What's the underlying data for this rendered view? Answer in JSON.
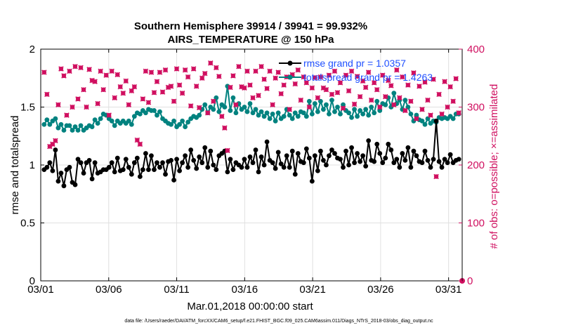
{
  "chart_data": {
    "type": "line",
    "title": "Southern Hemisphere 39914 / 39941 = 99.932%",
    "subtitle": "AIRS_TEMPERATURE @ 150 hPa",
    "xlabel": "Mar.01,2018 00:00:00 start",
    "ylabel": "rmse and totalspread",
    "ylabel_right": "# of obs: o=possible; ×=assimilated",
    "xlim": [
      0,
      31
    ],
    "ylim": [
      0,
      2
    ],
    "ylim_right": [
      0,
      400
    ],
    "x_tick_labels": [
      "03/01",
      "03/06",
      "03/11",
      "03/16",
      "03/21",
      "03/26",
      "03/31"
    ],
    "x_tick_values": [
      0,
      5,
      10,
      15,
      20,
      25,
      30
    ],
    "y_tick_labels": [
      "0",
      "0.5",
      "1",
      "1.5",
      "2"
    ],
    "y_tick_values": [
      0,
      0.5,
      1,
      1.5,
      2
    ],
    "y_right_tick_labels": [
      "0",
      "100",
      "200",
      "300",
      "400"
    ],
    "y_right_tick_values": [
      0,
      100,
      200,
      300,
      400
    ],
    "legend": [
      "rmse grand pr = 1.0357",
      "totalspread grand pr = 1.4263"
    ],
    "legend_position": "top-right",
    "colors": {
      "rmse": "#000000",
      "spread": "#00827f",
      "obs": "#d01060",
      "legend_text": "#1f4fff",
      "grid": "#e0e0e0"
    },
    "series": [
      {
        "name": "rmse",
        "values": [
          0.96,
          0.98,
          1.02,
          0.95,
          1.13,
          0.86,
          0.93,
          0.82,
          0.96,
          0.98,
          0.85,
          0.83,
          1.05,
          1.02,
          0.93,
          1.02,
          1.04,
          0.88,
          1.02,
          0.93,
          0.94,
          0.96,
          0.96,
          0.98,
          1.02,
          0.94,
          1.06,
          0.95,
          0.96,
          1.05,
          0.98,
          0.92,
          1.02,
          1.06,
          0.9,
          0.96,
          1.1,
          0.96,
          1.08,
          0.96,
          1.02,
          0.98,
          1.02,
          0.92,
          1.03,
          1.04,
          0.87,
          1.05,
          0.95,
          1.02,
          1.08,
          0.98,
          1.13,
          1.04,
          0.97,
          1.07,
          1.02,
          1.15,
          0.98,
          1.12,
          1.0,
          0.96,
          1.08,
          1.1,
          1.12,
          0.94,
          1.05,
          0.96,
          1.02,
          1.0,
          0.98,
          1.05,
          0.98,
          1.07,
          1.02,
          1.13,
          0.94,
          1.07,
          1.0,
          1.2,
          1.04,
          1.02,
          0.97,
          1.11,
          1.01,
          0.98,
          1.08,
          0.98,
          1.12,
          0.92,
          1.1,
          1.03,
          1.02,
          1.14,
          1.06,
          0.86,
          1.08,
          0.95,
          1.12,
          1.04,
          1.0,
          1.08,
          1.13,
          1.1,
          1.06,
          1.05,
          0.98,
          1.12,
          1.0,
          1.15,
          1.02,
          1.1,
          1.03,
          1.08,
          0.99,
          1.21,
          1.04,
          1.03,
          1.18,
          1.1,
          1.02,
          1.06,
          1.18,
          1.13,
          1.02,
          1.05,
          0.98,
          1.1,
          1.04,
          1.15,
          0.98,
          1.12,
          1.08,
          1.03,
          1.02,
          1.12,
          1.04,
          0.98,
          1.05,
          1.38,
          1.03,
          0.98,
          1.05,
          1.02,
          1.09,
          1.02,
          1.04,
          1.05
        ]
      },
      {
        "name": "totalspread",
        "values": [
          1.35,
          1.39,
          1.35,
          1.38,
          1.4,
          1.32,
          1.35,
          1.3,
          1.34,
          1.34,
          1.3,
          1.33,
          1.3,
          1.34,
          1.3,
          1.32,
          1.34,
          1.33,
          1.39,
          1.36,
          1.4,
          1.44,
          1.43,
          1.4,
          1.38,
          1.34,
          1.38,
          1.36,
          1.38,
          1.36,
          1.38,
          1.35,
          1.42,
          1.45,
          1.44,
          1.47,
          1.45,
          1.48,
          1.47,
          1.47,
          1.43,
          1.46,
          1.4,
          1.38,
          1.36,
          1.35,
          1.38,
          1.33,
          1.35,
          1.38,
          1.33,
          1.37,
          1.4,
          1.42,
          1.41,
          1.43,
          1.48,
          1.52,
          1.45,
          1.5,
          1.48,
          1.58,
          1.46,
          1.52,
          1.5,
          1.68,
          1.47,
          1.58,
          1.45,
          1.53,
          1.48,
          1.5,
          1.46,
          1.53,
          1.45,
          1.48,
          1.43,
          1.46,
          1.42,
          1.45,
          1.4,
          1.44,
          1.38,
          1.45,
          1.4,
          1.42,
          1.48,
          1.43,
          1.4,
          1.45,
          1.42,
          1.46,
          1.45,
          1.42,
          1.55,
          1.44,
          1.53,
          1.46,
          1.55,
          1.48,
          1.52,
          1.44,
          1.56,
          1.46,
          1.5,
          1.44,
          1.52,
          1.47,
          1.45,
          1.41,
          1.48,
          1.42,
          1.47,
          1.44,
          1.48,
          1.43,
          1.5,
          1.45,
          1.55,
          1.47,
          1.53,
          1.52,
          1.58,
          1.5,
          1.62,
          1.53,
          1.56,
          1.48,
          1.56,
          1.5,
          1.44,
          1.38,
          1.43,
          1.39,
          1.38,
          1.35,
          1.4,
          1.36,
          1.38,
          1.37,
          1.41,
          1.4,
          1.41,
          1.4,
          1.42,
          1.4,
          1.44,
          1.44
        ]
      },
      {
        "name": "possible",
        "values": [
          0,
          0,
          0,
          0,
          0,
          0,
          0,
          0,
          0,
          0,
          0,
          0,
          0,
          0,
          0,
          0,
          0,
          0,
          0,
          0,
          0,
          0,
          0,
          0,
          0,
          0,
          0,
          0,
          0,
          0,
          0,
          0,
          0,
          0,
          0,
          0,
          0,
          0,
          0,
          0,
          0,
          0,
          0,
          0,
          0,
          0,
          0,
          0,
          0,
          0,
          0,
          0,
          0,
          0,
          0,
          0,
          0,
          0,
          0,
          0,
          0,
          0,
          0,
          0,
          0,
          0,
          0,
          0,
          0,
          0,
          0,
          0,
          0,
          0,
          0,
          0,
          0,
          0,
          0,
          0,
          0,
          0,
          0,
          0,
          0,
          0,
          0,
          0,
          0,
          0,
          0,
          0,
          0,
          0,
          0,
          0,
          0,
          0,
          0,
          0,
          0,
          0,
          0,
          0,
          0,
          0,
          0,
          0,
          0,
          0,
          0,
          0,
          0,
          0,
          0,
          0,
          0,
          0,
          0,
          0,
          0,
          0,
          0,
          0,
          0,
          0,
          0,
          0,
          0,
          0,
          0,
          0,
          0,
          0,
          0,
          0,
          0,
          0,
          0,
          0,
          0,
          0,
          0,
          0,
          0,
          0,
          0,
          0
        ]
      },
      {
        "name": "assimilated",
        "values": [
          360,
          322,
          232,
          236,
          242,
          304,
          366,
          354,
          286,
          362,
          300,
          370,
          314,
          368,
          330,
          300,
          365,
          346,
          344,
          306,
          362,
          330,
          355,
          286,
          362,
          316,
          356,
          335,
          324,
          345,
          304,
          328,
          335,
          243,
          236,
          314,
          362,
          308,
          360,
          325,
          344,
          360,
          326,
          364,
          334,
          336,
          310,
          366,
          338,
          324,
          364,
          352,
          302,
          366,
          336,
          299,
          350,
          358,
          290,
          376,
          310,
          368,
          353,
          284,
          264,
          225,
          334,
          354,
          304,
          370,
          335,
          333,
          362,
          338,
          316,
          362,
          320,
          370,
          348,
          332,
          362,
          304,
          350,
          360,
          323,
          338,
          352,
          296,
          356,
          340,
          364,
          312,
          352,
          342,
          300,
          333,
          351,
          316,
          352,
          333,
          330,
          355,
          322,
          362,
          325,
          342,
          298,
          355,
          328,
          362,
          305,
          353,
          318,
          345,
          334,
          360,
          312,
          342,
          330,
          300,
          355,
          318,
          346,
          337,
          304,
          364,
          316,
          352,
          294,
          338,
          310,
          359,
          280,
          336,
          296,
          343,
          312,
          286,
          348,
          180,
          322,
          288,
          344,
          300,
          335,
          310,
          349,
          290
        ]
      }
    ]
  },
  "footer": "data file: /Users/raeder/DAI/ATM_forcXX/CAM6_setup/f.e21.FHIST_BGC.f09_025.CAM6assim.011/Diags_NTrS_2018-03/obs_diag_output.nc"
}
